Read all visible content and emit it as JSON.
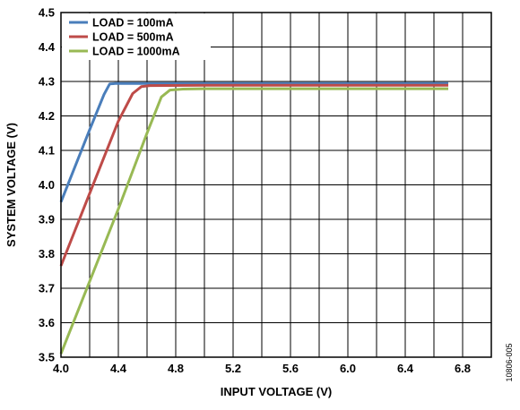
{
  "chart_data": {
    "type": "line",
    "xlabel": "INPUT VOLTAGE (V)",
    "ylabel": "SYSTEM VOLTAGE (V)",
    "xlim": [
      4.0,
      7.0
    ],
    "ylim": [
      3.5,
      4.5
    ],
    "x_tick_values": [
      4.0,
      4.4,
      4.8,
      5.2,
      5.6,
      6.0,
      6.4,
      6.8
    ],
    "x_tick_labels": [
      "4.0",
      "4.4",
      "4.8",
      "5.2",
      "5.6",
      "6.0",
      "6.4",
      "6.8"
    ],
    "y_tick_values": [
      3.5,
      3.6,
      3.7,
      3.8,
      3.9,
      4.0,
      4.1,
      4.2,
      4.3,
      4.4,
      4.5
    ],
    "y_tick_labels": [
      "3.5",
      "3.6",
      "3.7",
      "3.8",
      "3.9",
      "4.0",
      "4.1",
      "4.2",
      "4.3",
      "4.4",
      "4.5"
    ],
    "x_grid_step": 0.2,
    "y_grid_step": 0.1,
    "grid": true,
    "legend_position": "top-left",
    "figure_id": "10806-005",
    "series": [
      {
        "name": "LOAD = 100mA",
        "color": "#4a7ebb",
        "points": [
          [
            4.0,
            3.95
          ],
          [
            4.1,
            4.055
          ],
          [
            4.2,
            4.16
          ],
          [
            4.3,
            4.262
          ],
          [
            4.34,
            4.293
          ],
          [
            4.38,
            4.294
          ],
          [
            5.0,
            4.294
          ],
          [
            6.0,
            4.294
          ],
          [
            6.7,
            4.294
          ]
        ]
      },
      {
        "name": "LOAD = 500mA",
        "color": "#be4b48",
        "points": [
          [
            4.0,
            3.765
          ],
          [
            4.1,
            3.87
          ],
          [
            4.2,
            3.975
          ],
          [
            4.3,
            4.08
          ],
          [
            4.4,
            4.185
          ],
          [
            4.5,
            4.265
          ],
          [
            4.56,
            4.285
          ],
          [
            4.62,
            4.288
          ],
          [
            5.0,
            4.289
          ],
          [
            6.0,
            4.289
          ],
          [
            6.7,
            4.289
          ]
        ]
      },
      {
        "name": "LOAD = 1000mA",
        "color": "#98b954",
        "points": [
          [
            4.0,
            3.51
          ],
          [
            4.1,
            3.615
          ],
          [
            4.2,
            3.72
          ],
          [
            4.3,
            3.825
          ],
          [
            4.4,
            3.93
          ],
          [
            4.5,
            4.04
          ],
          [
            4.6,
            4.15
          ],
          [
            4.7,
            4.255
          ],
          [
            4.76,
            4.275
          ],
          [
            4.85,
            4.278
          ],
          [
            5.0,
            4.279
          ],
          [
            6.0,
            4.279
          ],
          [
            6.7,
            4.279
          ]
        ]
      }
    ]
  }
}
